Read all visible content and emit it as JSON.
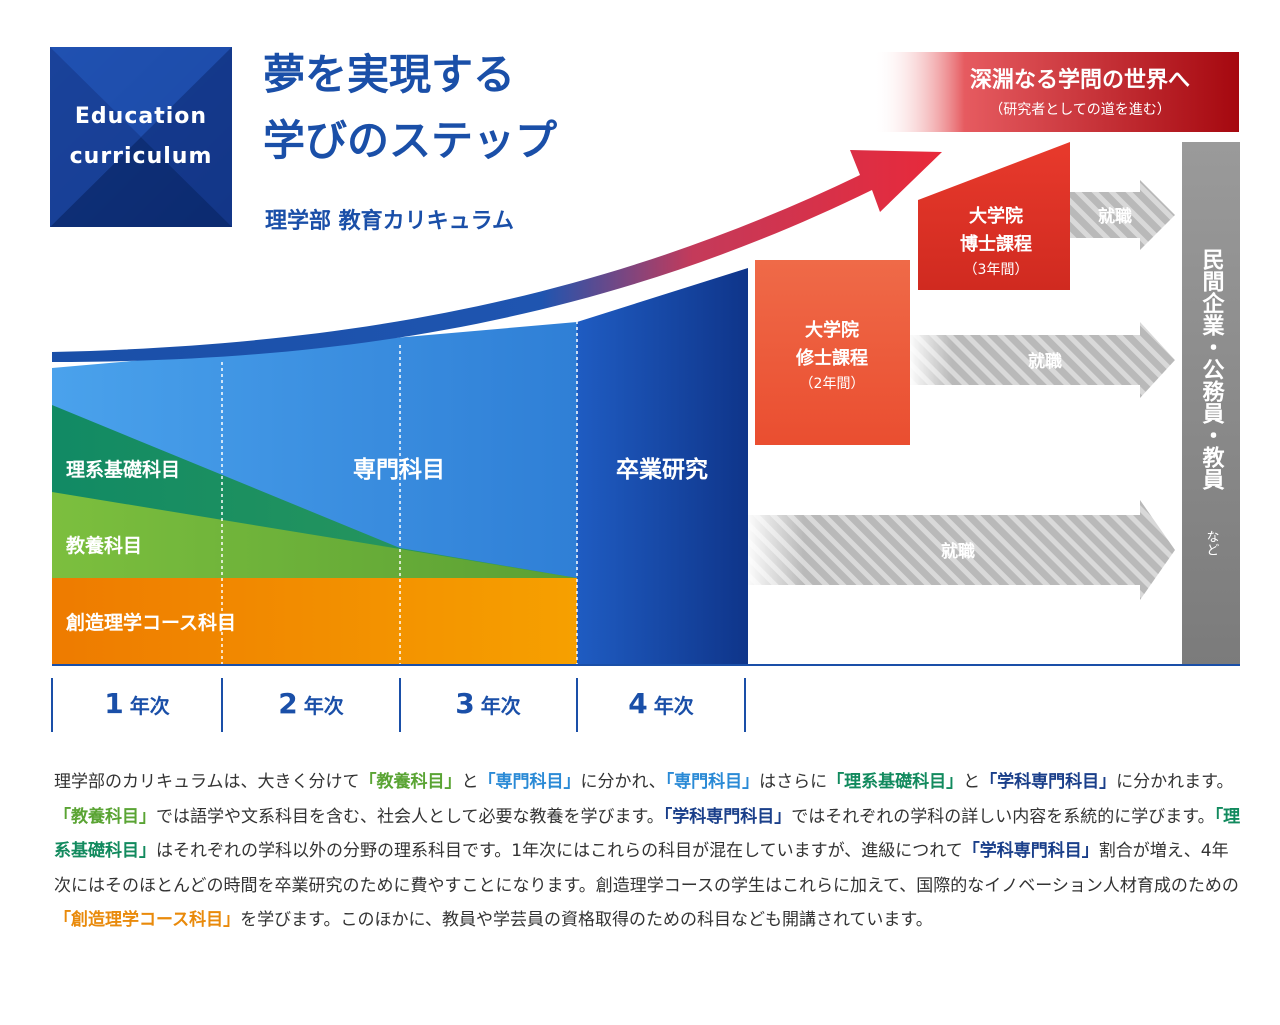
{
  "badge": {
    "line1": "Education",
    "line2": "curriculum"
  },
  "title": {
    "line1": "夢を実現する",
    "line2": "学びのステップ",
    "subtitle": "理学部 教育カリキュラム"
  },
  "banner": {
    "main": "深淵なる学問の世界へ",
    "sub": "（研究者としての道を進む）"
  },
  "areas": {
    "basic_science": "理系基礎科目",
    "liberal_arts": "教養科目",
    "creative": "創造理学コース科目",
    "specialized": "専門科目",
    "graduation": "卒業研究"
  },
  "grad": {
    "masters": {
      "line1": "大学院",
      "line2": "修士課程",
      "line3": "（2年間）"
    },
    "doctoral": {
      "line1": "大学院",
      "line2": "博士課程",
      "line3": "（3年間）"
    }
  },
  "employment": {
    "label1": "就職",
    "label2": "就職",
    "label3": "就職"
  },
  "destination": {
    "text": "民間企業・公務員・教員",
    "suffix": "など"
  },
  "years": [
    {
      "num": "1",
      "unit": "年次"
    },
    {
      "num": "2",
      "unit": "年次"
    },
    {
      "num": "3",
      "unit": "年次"
    },
    {
      "num": "4",
      "unit": "年次"
    }
  ],
  "description": {
    "s1": "理学部のカリキュラムは、大きく分けて",
    "k1": "「教養科目」",
    "s2": "と",
    "k2": "「専門科目」",
    "s3": "に分かれ、",
    "k3": "「専門科目」",
    "s4": "はさらに",
    "k4": "「理系基礎科目」",
    "s5": "と",
    "k5": "「学科専門科目」",
    "s6": "に分かれます。",
    "k6": "「教養科目」",
    "s7": "では語学や文系科目を含む、社会人として必要な教養を学びます。",
    "k7": "「学科専門科目」",
    "s8": "ではそれぞれの学科の詳しい内容を系統的に学びます。",
    "k8": "「理系基礎科目」",
    "s9": "はそれぞれの学科以外の分野の理系科目です。1年次にはこれらの科目が混在していますが、進級につれて",
    "k9": "「学科専門科目」",
    "s10": "割合が増え、4年次にはそのほとんどの時間を卒業研究のために費やすことになります。創造理学コースの学生はこれらに加えて、国際的なイノベーション人材育成のための",
    "k10": "「創造理学コース科目」",
    "s11": "を学びます。このほかに、教員や学芸員の資格取得のための科目なども開講されています。"
  },
  "colors": {
    "navy": "#123a8c",
    "blue": "#3a8fe0",
    "teal": "#138a62",
    "green": "#6db33a",
    "orange": "#f08a00",
    "red": "#d42a2a",
    "coral": "#ef5a3a",
    "gray": "#8a8a8a"
  }
}
